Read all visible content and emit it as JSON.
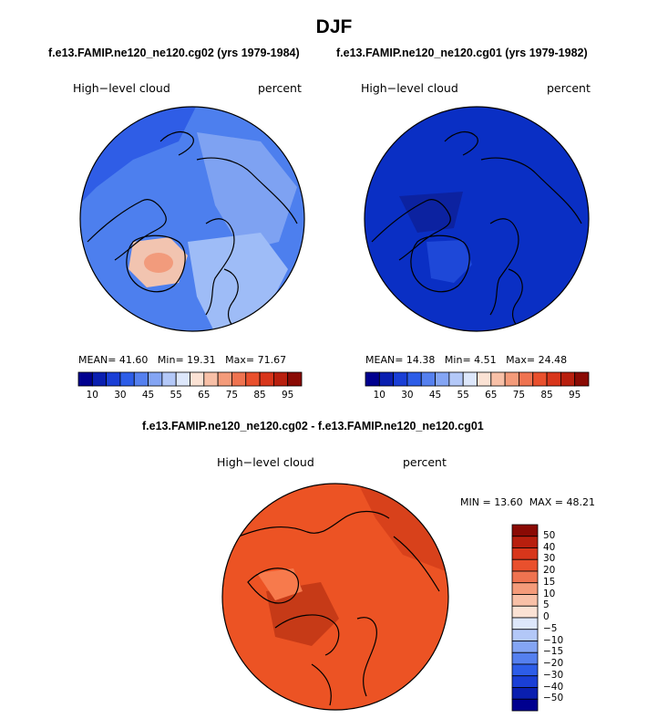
{
  "figure": {
    "title": "DJF",
    "panels": [
      {
        "case": "f.e13.FAMIP.ne120_ne120.cg02 (yrs 1979-1984)",
        "variable": "High−level cloud",
        "units": "percent",
        "stats": {
          "mean_label": "MEAN=",
          "mean": "41.60",
          "min_label": "Min=",
          "min": "19.31",
          "max_label": "Max=",
          "max": "71.67"
        },
        "map": {
          "base_color": "#4d7fee",
          "patches": [
            {
              "lat_lon_hint": "greenland",
              "color": "#f2c4b0"
            },
            {
              "lat_lon_hint": "greenland-core",
              "color": "#f29b7c"
            },
            {
              "lat_lon_hint": "atlantic",
              "color": "#9ebcf7"
            },
            {
              "lat_lon_hint": "asia",
              "color": "#7ea2f2"
            },
            {
              "lat_lon_hint": "pacific",
              "color": "#2f5de6"
            }
          ]
        }
      },
      {
        "case": "f.e13.FAMIP.ne120_ne120.cg01 (yrs 1979-1982)",
        "variable": "High−level cloud",
        "units": "percent",
        "stats": {
          "mean_label": "MEAN=",
          "mean": "14.38",
          "min_label": "Min=",
          "min": "4.51",
          "max_label": "Max=",
          "max": "24.48"
        },
        "map": {
          "base_color": "#0a2fc4",
          "patches": [
            {
              "lat_lon_hint": "north-america",
              "color": "#0c22a0"
            },
            {
              "lat_lon_hint": "greenland",
              "color": "#1e48d8"
            },
            {
              "lat_lon_hint": "pacific-edge",
              "color": "#1b3fd0"
            }
          ]
        }
      }
    ],
    "shared_colorbar": {
      "labels": [
        "10",
        "30",
        "45",
        "55",
        "65",
        "75",
        "85",
        "95"
      ],
      "colors": [
        "#00008f",
        "#0a1fb0",
        "#1a3fd6",
        "#2d5de8",
        "#5580ef",
        "#84a5f4",
        "#b3c8f8",
        "#dde7fb",
        "#fbe2d4",
        "#f8c0a7",
        "#f49b7a",
        "#ef7350",
        "#e9502d",
        "#d8361b",
        "#b81f0e",
        "#8a0a04"
      ]
    },
    "difference_panel": {
      "case": "f.e13.FAMIP.ne120_ne120.cg02 - f.e13.FAMIP.ne120_ne120.cg01",
      "variable": "High−level cloud",
      "units": "percent",
      "stats": {
        "min_label": "MIN =",
        "min": "13.60",
        "max_label": "MAX =",
        "max": "48.21"
      },
      "map": {
        "base_color": "#ec5324",
        "patches": [
          {
            "lat_lon_hint": "siberia",
            "color": "#d8411b"
          },
          {
            "lat_lon_hint": "greenland",
            "color": "#f77a4c"
          },
          {
            "lat_lon_hint": "north-america",
            "color": "#c63a17"
          }
        ]
      },
      "colorbar": {
        "labels": [
          "50",
          "40",
          "30",
          "20",
          "15",
          "10",
          "5",
          "0",
          "−5",
          "−10",
          "−15",
          "−20",
          "−30",
          "−40",
          "−50"
        ],
        "colors": [
          "#8a0a04",
          "#b81f0e",
          "#d8361b",
          "#e9502d",
          "#ef7350",
          "#f49b7a",
          "#f8c0a7",
          "#fbe2d4",
          "#dde7fb",
          "#b3c8f8",
          "#84a5f4",
          "#5580ef",
          "#2d5de8",
          "#1a3fd6",
          "#0a1fb0",
          "#00008f"
        ]
      }
    }
  }
}
